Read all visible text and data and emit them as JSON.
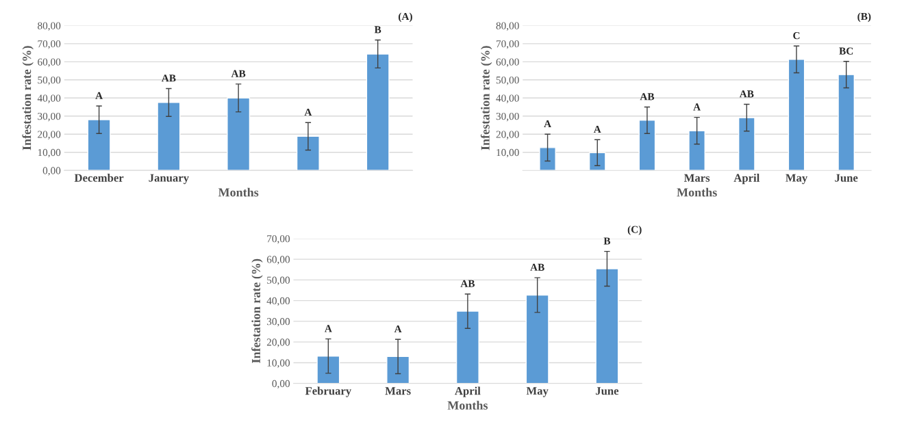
{
  "chart_data": [
    {
      "type": "bar",
      "title": "(A)",
      "xlabel": "Months",
      "ylabel": "Infestation rate (%)",
      "categories": [
        "December",
        "January",
        null,
        null,
        null
      ],
      "color": "#5b9bd5",
      "values": [
        28.0,
        37.5,
        40.0,
        18.8,
        64.3
      ],
      "errors": [
        7.6,
        7.7,
        7.7,
        7.6,
        7.7
      ],
      "ylim": [
        0,
        80
      ],
      "yticks": [
        {
          "value": 0,
          "label": "0,00"
        },
        {
          "value": 10,
          "label": "10,00"
        },
        {
          "value": 20,
          "label": "20,00"
        },
        {
          "value": 30,
          "label": "30,00"
        },
        {
          "value": 40,
          "label": "40,00"
        },
        {
          "value": 50,
          "label": "50,00"
        },
        {
          "value": 60,
          "label": "60,00"
        },
        {
          "value": 70,
          "label": "70,00"
        },
        {
          "value": 80,
          "label": "80,00"
        }
      ],
      "grid": "y",
      "annotations": [
        "A",
        "AB",
        "AB",
        "A",
        "B"
      ]
    },
    {
      "type": "bar",
      "title": "(B)",
      "xlabel": "Months",
      "ylabel": "Infestation rate (%)",
      "categories": [
        null,
        null,
        null,
        "Mars",
        "April",
        "May",
        "June"
      ],
      "color": "#5b9bd5",
      "values": [
        12.6,
        9.8,
        27.7,
        21.9,
        29.1,
        61.3,
        52.9
      ],
      "errors": [
        7.4,
        7.2,
        7.3,
        7.4,
        7.4,
        7.4,
        7.3
      ],
      "ylim": [
        0,
        80
      ],
      "yticks": [
        {
          "value": 10,
          "label": "10,00"
        },
        {
          "value": 20,
          "label": "20,00"
        },
        {
          "value": 30,
          "label": "30,00"
        },
        {
          "value": 40,
          "label": "40,00"
        },
        {
          "value": 50,
          "label": "50,00"
        },
        {
          "value": 60,
          "label": "60,00"
        },
        {
          "value": 70,
          "label": "70,00"
        },
        {
          "value": 80,
          "label": "80,00"
        }
      ],
      "grid": "y",
      "annotations": [
        "A",
        "A",
        "AB",
        "A",
        "AB",
        "C",
        "BC"
      ]
    },
    {
      "type": "bar",
      "title": "(C)",
      "xlabel": "Months",
      "ylabel": "Infestation rate (%)",
      "categories": [
        "February",
        "Mars",
        "April",
        "May",
        "June"
      ],
      "color": "#5b9bd5",
      "values": [
        13.2,
        13.0,
        34.9,
        42.7,
        55.4
      ],
      "errors": [
        8.3,
        8.3,
        8.3,
        8.4,
        8.4
      ],
      "ylim": [
        0,
        70
      ],
      "yticks": [
        {
          "value": 0,
          "label": "0,00"
        },
        {
          "value": 10,
          "label": "10,00"
        },
        {
          "value": 20,
          "label": "20,00"
        },
        {
          "value": 30,
          "label": "30,00"
        },
        {
          "value": 40,
          "label": "40,00"
        },
        {
          "value": 50,
          "label": "50,00"
        },
        {
          "value": 60,
          "label": "60,00"
        },
        {
          "value": 70,
          "label": "70,00"
        }
      ],
      "grid": "y",
      "annotations": [
        "A",
        "A",
        "AB",
        "AB",
        "B"
      ]
    }
  ]
}
